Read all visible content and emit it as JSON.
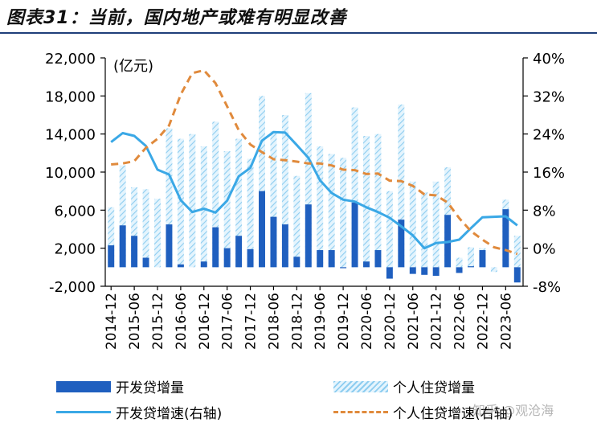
{
  "title": "图表31：当前，国内地产或难有明显改善",
  "watermark": "知乎 @观沧海",
  "chart_data": {
    "type": "bar",
    "unit_label": "(亿元)",
    "x_tick_labels": [
      "2014-12",
      "2015-06",
      "2015-12",
      "2016-06",
      "2016-12",
      "2017-06",
      "2017-12",
      "2018-06",
      "2018-12",
      "2019-06",
      "2019-12",
      "2020-06",
      "2020-12",
      "2021-06",
      "2021-12",
      "2022-06",
      "2022-12",
      "2023-06"
    ],
    "left_axis": {
      "ticks": [
        22000,
        18000,
        14000,
        10000,
        6000,
        2000,
        -2000
      ],
      "tick_labels": [
        "22,000",
        "18,000",
        "14,000",
        "10,000",
        "6,000",
        "2,000",
        "-2,000"
      ],
      "ylim": [
        -2000,
        22000
      ]
    },
    "right_axis": {
      "ticks": [
        40,
        32,
        24,
        16,
        8,
        0,
        -8
      ],
      "tick_labels": [
        "40%",
        "32%",
        "24%",
        "16%",
        "8%",
        "0%",
        "-8%"
      ],
      "ylim": [
        -8,
        40
      ]
    },
    "series": [
      {
        "name": "开发贷增量",
        "kind": "bar",
        "axis": "left",
        "color": "#1f5fbf",
        "values": [
          2300,
          4400,
          3300,
          1000,
          0,
          4500,
          300,
          0,
          600,
          4200,
          2000,
          3300,
          1900,
          8000,
          5300,
          4500,
          1100,
          6600,
          1800,
          1800,
          -100,
          6800,
          600,
          1800,
          -1200,
          5000,
          -700,
          -800,
          -900,
          5500,
          -600,
          100,
          1800,
          0,
          6100,
          -1600
        ]
      },
      {
        "name": "个人住贷增量",
        "kind": "hatched-bar",
        "axis": "left",
        "color": "#8ecdf0",
        "values": [
          6300,
          10700,
          8400,
          8200,
          7200,
          14600,
          13500,
          14000,
          12700,
          15300,
          12200,
          13500,
          11400,
          18000,
          14300,
          16000,
          9600,
          18300,
          12700,
          11900,
          11500,
          16800,
          13800,
          14000,
          8000,
          17100,
          9000,
          7900,
          9000,
          10500,
          1000,
          2100,
          2000,
          -500,
          7100,
          3300
        ]
      },
      {
        "name": "开发贷增速(右轴)",
        "kind": "line",
        "axis": "right",
        "color": "#3aa8e6",
        "values": [
          22.3,
          24.2,
          23.6,
          21.5,
          16.5,
          15.5,
          10.1,
          7.6,
          8.3,
          7.5,
          10.0,
          15.1,
          16.9,
          22.6,
          24.4,
          24.3,
          21.7,
          19.0,
          14.3,
          11.6,
          10.2,
          9.8,
          8.6,
          7.6,
          6.4,
          4.6,
          2.7,
          0.0,
          1.1,
          1.3,
          1.8,
          4.2,
          6.5,
          6.6,
          6.7,
          4.8
        ]
      },
      {
        "name": "个人住贷增速(右轴)",
        "kind": "dashed-line",
        "axis": "right",
        "color": "#e08a3c",
        "values": [
          17.6,
          17.8,
          18.3,
          21.1,
          23.0,
          25.8,
          32.3,
          36.8,
          37.4,
          34.7,
          29.8,
          24.8,
          21.8,
          20.2,
          18.7,
          18.5,
          18.2,
          17.8,
          17.8,
          17.4,
          16.5,
          16.4,
          15.6,
          15.7,
          14.2,
          14.1,
          13.1,
          11.3,
          11.1,
          9.6,
          6.3,
          3.6,
          1.8,
          0.2,
          -0.4,
          -1.2
        ]
      }
    ],
    "legend": {
      "dev_loan_increment": "开发贷增量",
      "mortgage_increment": "个人住贷增量",
      "dev_loan_growth": "开发贷增速(右轴)",
      "mortgage_growth": "个人住贷增速(右轴)"
    }
  }
}
